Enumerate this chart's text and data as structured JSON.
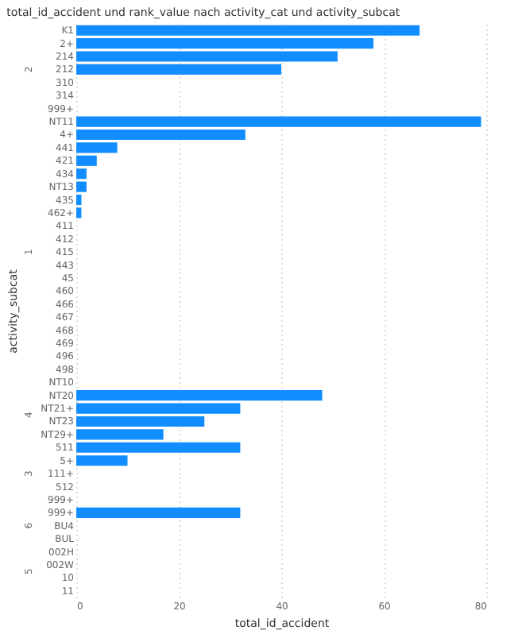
{
  "chart_data": {
    "type": "bar",
    "orientation": "horizontal",
    "title": "total_id_accident und rank_value nach activity_cat und activity_subcat",
    "xlabel": "total_id_accident",
    "ylabel": "activity_subcat",
    "categories": [
      "K1",
      "2+",
      "214",
      "212",
      "310",
      "314",
      "999+",
      "NT11",
      "4+",
      "441",
      "421",
      "434",
      "NT13",
      "435",
      "462+",
      "411",
      "412",
      "415",
      "443",
      "45",
      "460",
      "466",
      "467",
      "468",
      "469",
      "496",
      "498",
      "NT10",
      "NT20",
      "NT21+",
      "NT23",
      "NT29+",
      "511",
      "5+",
      "111+",
      "512",
      "999+",
      "999+",
      "BU4",
      "BUL",
      "002H",
      "002W",
      "10",
      "11"
    ],
    "values": [
      67,
      58,
      51,
      40,
      null,
      null,
      null,
      79,
      33,
      8,
      4,
      2,
      2,
      1,
      1,
      null,
      null,
      null,
      null,
      null,
      null,
      null,
      null,
      null,
      null,
      null,
      null,
      null,
      48,
      32,
      25,
      17,
      32,
      10,
      null,
      null,
      null,
      32,
      null,
      null,
      null,
      null,
      null,
      null
    ],
    "color": "#118dff",
    "xlim": [
      0,
      80
    ],
    "xticks": [
      0,
      20,
      40,
      60,
      80
    ],
    "grid": "x",
    "annotations": [
      "2",
      "1",
      "4",
      "3",
      "6",
      "5"
    ]
  }
}
